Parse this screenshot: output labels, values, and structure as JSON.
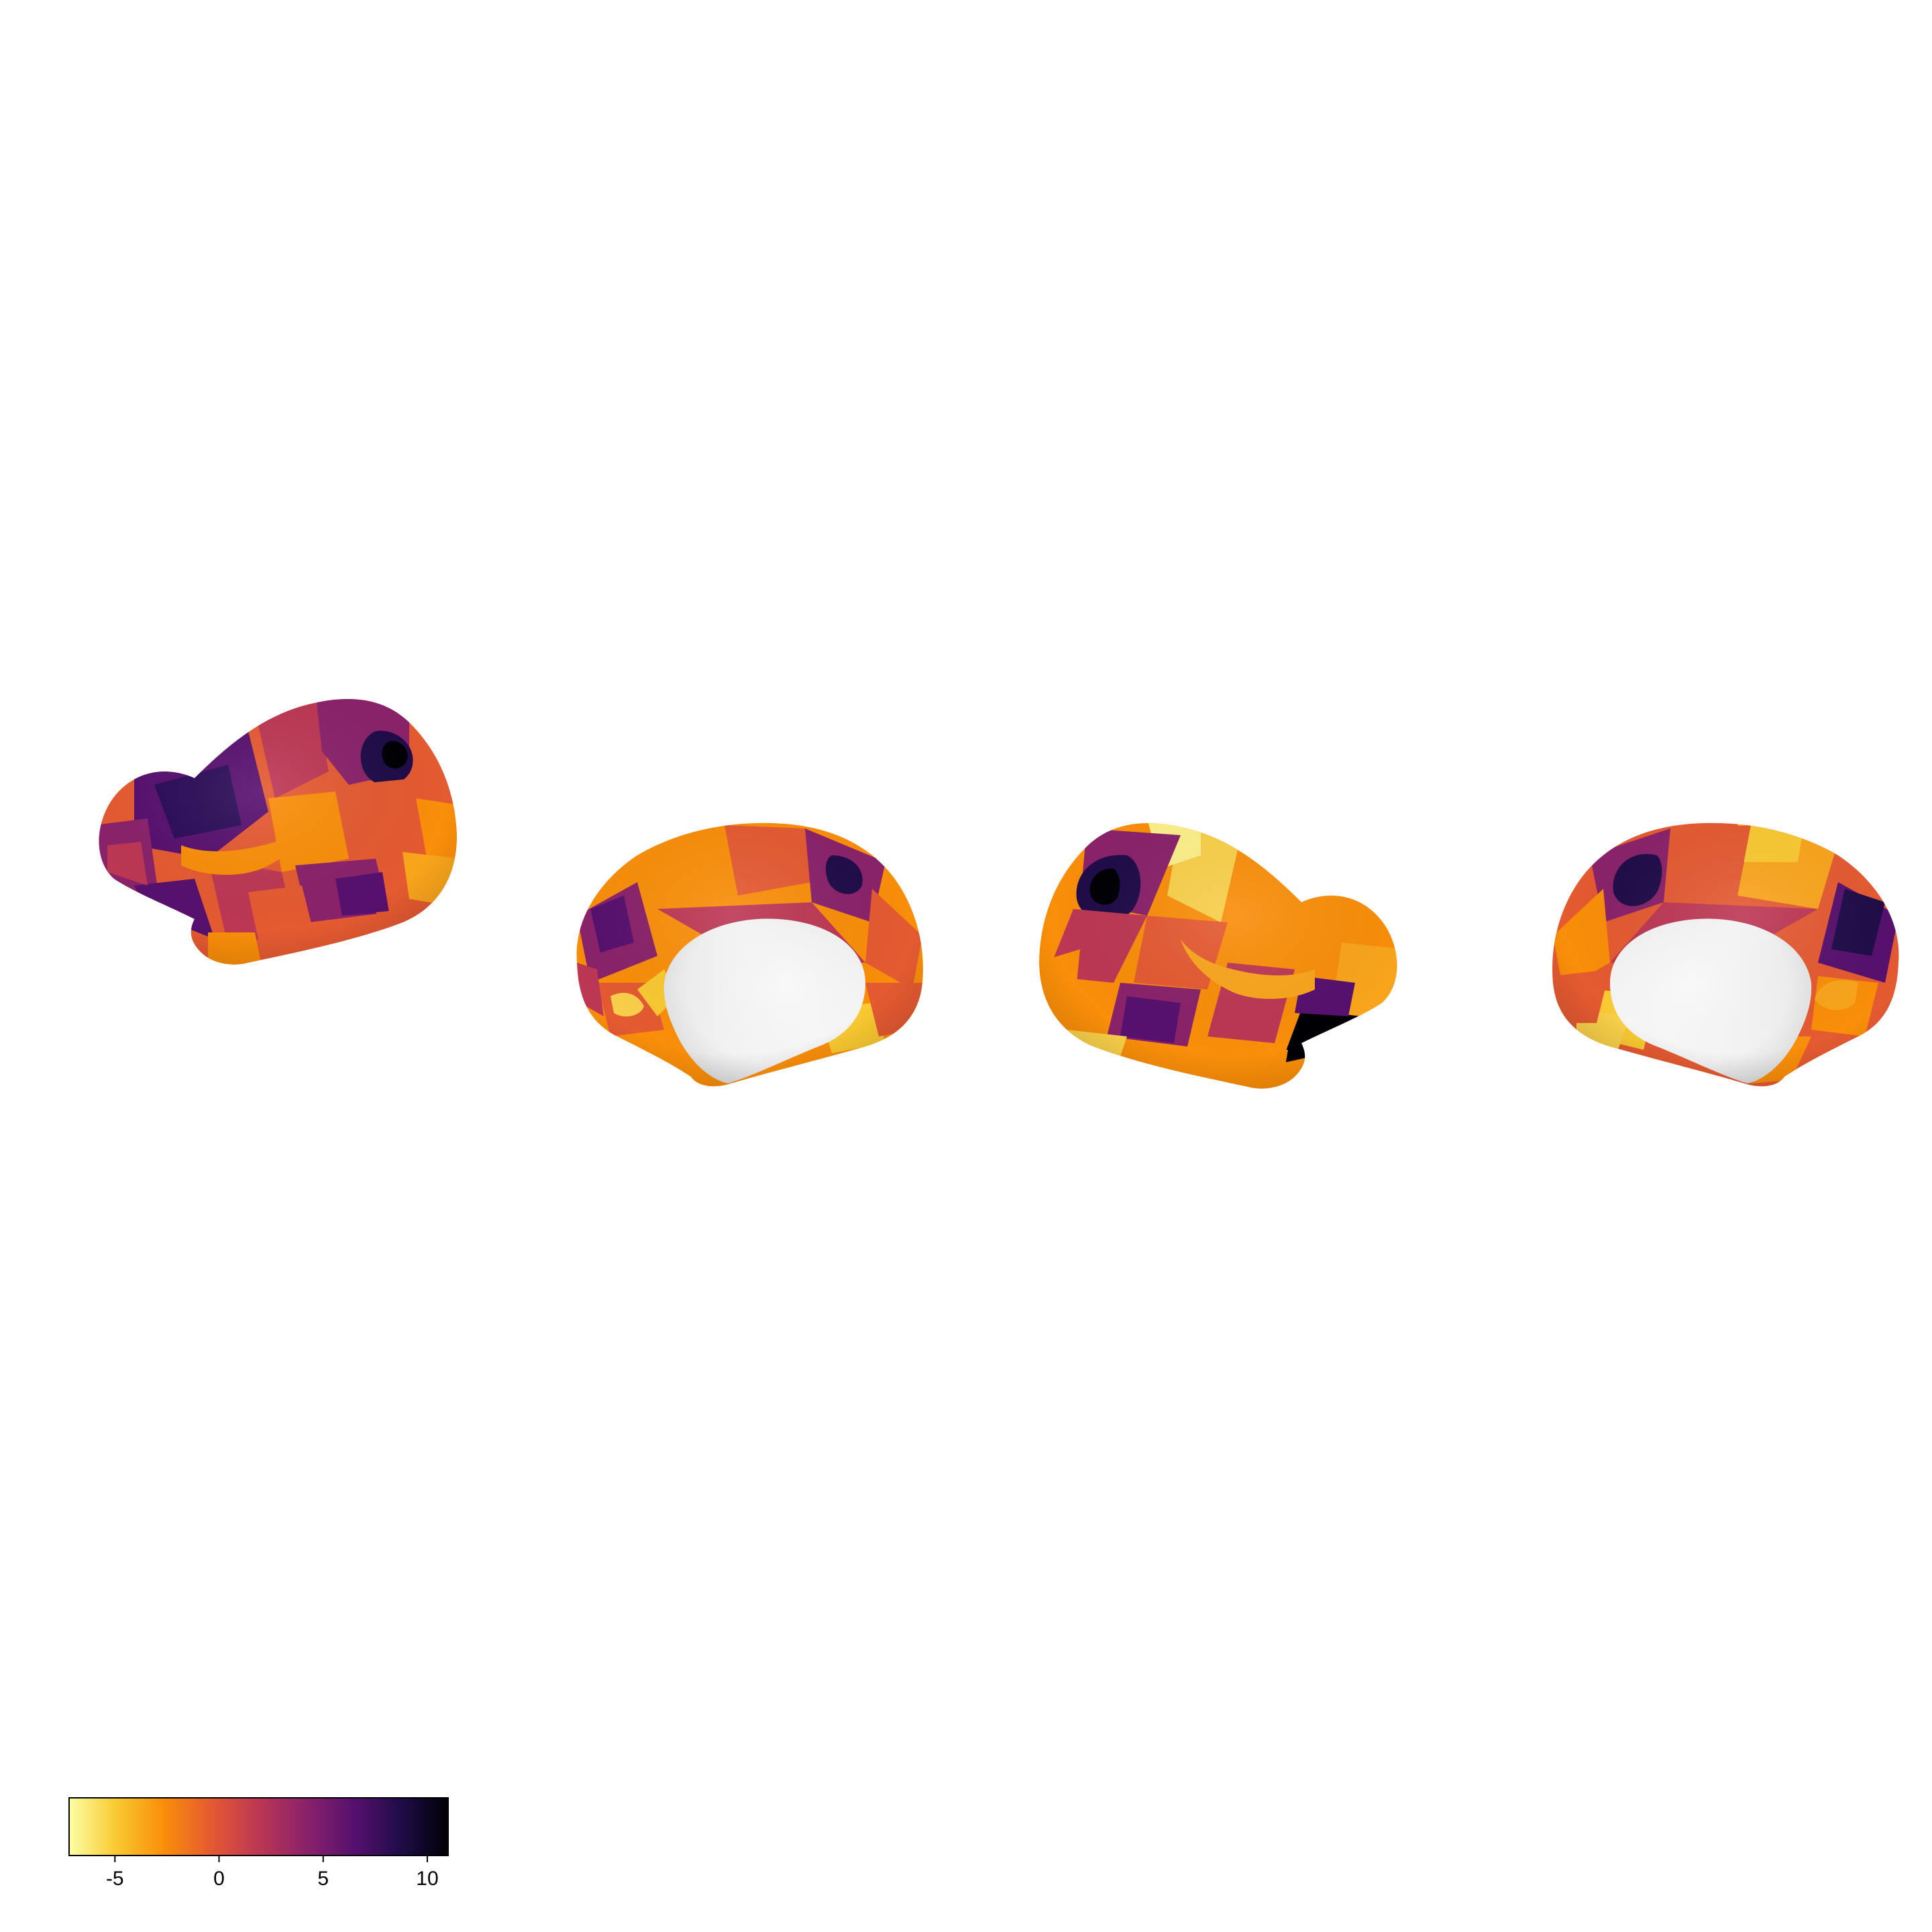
{
  "colormap": {
    "name": "inferno-reversed",
    "stops": [
      "#fcffa4",
      "#f9c932",
      "#f98e09",
      "#e45a31",
      "#bc3754",
      "#8a226a",
      "#57106e",
      "#1f0c48",
      "#000004"
    ]
  },
  "colorbar": {
    "range": [
      -7.2,
      11
    ],
    "ticks": [
      {
        "value": -5,
        "label": "-5"
      },
      {
        "value": 0,
        "label": "0"
      },
      {
        "value": 5,
        "label": "5"
      },
      {
        "value": 10,
        "label": "10"
      }
    ]
  },
  "views": [
    {
      "id": "left-lateral",
      "type": "lateral"
    },
    {
      "id": "left-medial",
      "type": "medial"
    },
    {
      "id": "right-lateral",
      "type": "lateral"
    },
    {
      "id": "right-medial",
      "type": "medial"
    }
  ]
}
